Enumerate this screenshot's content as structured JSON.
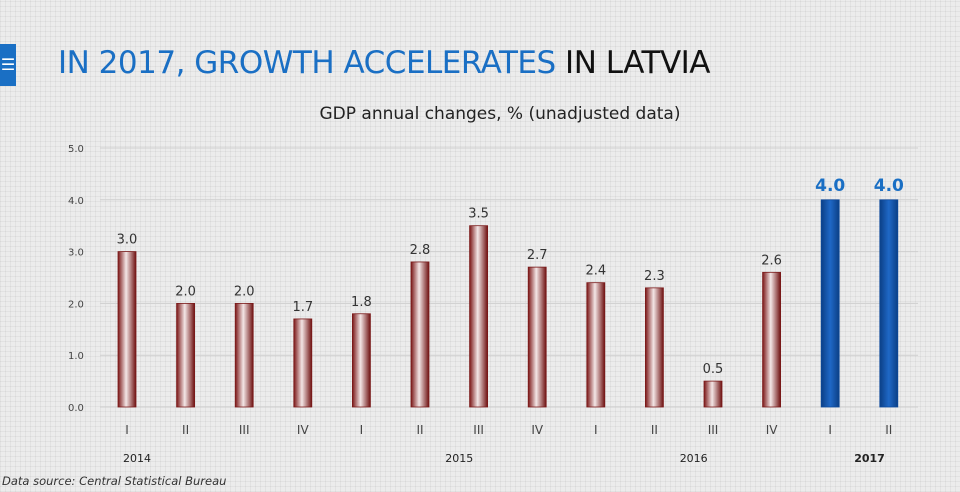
{
  "slide": {
    "title_part1": "IN 2017, GROWTH ACCELERATES",
    "title_part2": "IN LATVIA",
    "menu_icon": "menu-icon",
    "source": "Data source: Central Statistical Bureau"
  },
  "colors": {
    "accent": "#1a6fc4",
    "bar_default": "#7b1a1a",
    "bar_highlight": "#0d4a9b"
  },
  "chart_data": {
    "type": "bar",
    "title": "GDP annual changes, % (unadjusted data)",
    "categories": [
      "I",
      "II",
      "III",
      "IV",
      "I",
      "II",
      "III",
      "IV",
      "I",
      "II",
      "III",
      "IV",
      "I",
      "II"
    ],
    "years": [
      {
        "label": "2014",
        "first": 0,
        "last": 0,
        "bold": false
      },
      {
        "label": "2015",
        "first": 4,
        "last": 7,
        "bold": false
      },
      {
        "label": "2016",
        "first": 8,
        "last": 11,
        "bold": false
      },
      {
        "label": "2017",
        "first": 12,
        "last": 13,
        "bold": true
      }
    ],
    "values": [
      3.0,
      2.0,
      2.0,
      1.7,
      1.8,
      2.8,
      3.5,
      2.7,
      2.4,
      2.3,
      0.5,
      2.6,
      4.0,
      4.0
    ],
    "value_labels": [
      "3.0",
      "2.0",
      "2.0",
      "1.7",
      "1.8",
      "2.8",
      "3.5",
      "2.7",
      "2.4",
      "2.3",
      "0.5",
      "2.6",
      "4.0",
      "4.0"
    ],
    "highlighted": [
      12,
      13
    ],
    "yticks": [
      "0.0",
      "1.0",
      "2.0",
      "3.0",
      "4.0",
      "5.0"
    ],
    "ylim": [
      0,
      5
    ],
    "grid": true,
    "legend": "none"
  }
}
